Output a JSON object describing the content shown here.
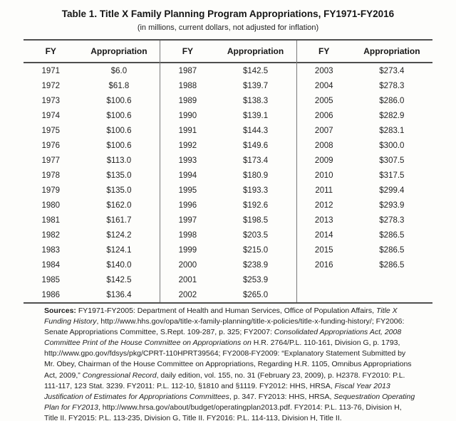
{
  "title": "Table 1. Title X Family Planning Program Appropriations, FY1971-FY2016",
  "subtitle": "(in millions, current dollars, not adjusted for inflation)",
  "table": {
    "column_headers": [
      "FY",
      "Appropriation"
    ],
    "groups": [
      {
        "rows": [
          [
            "1971",
            "$6.0"
          ],
          [
            "1972",
            "$61.8"
          ],
          [
            "1973",
            "$100.6"
          ],
          [
            "1974",
            "$100.6"
          ],
          [
            "1975",
            "$100.6"
          ],
          [
            "1976",
            "$100.6"
          ],
          [
            "1977",
            "$113.0"
          ],
          [
            "1978",
            "$135.0"
          ],
          [
            "1979",
            "$135.0"
          ],
          [
            "1980",
            "$162.0"
          ],
          [
            "1981",
            "$161.7"
          ],
          [
            "1982",
            "$124.2"
          ],
          [
            "1983",
            "$124.1"
          ],
          [
            "1984",
            "$140.0"
          ],
          [
            "1985",
            "$142.5"
          ],
          [
            "1986",
            "$136.4"
          ]
        ]
      },
      {
        "rows": [
          [
            "1987",
            "$142.5"
          ],
          [
            "1988",
            "$139.7"
          ],
          [
            "1989",
            "$138.3"
          ],
          [
            "1990",
            "$139.1"
          ],
          [
            "1991",
            "$144.3"
          ],
          [
            "1992",
            "$149.6"
          ],
          [
            "1993",
            "$173.4"
          ],
          [
            "1994",
            "$180.9"
          ],
          [
            "1995",
            "$193.3"
          ],
          [
            "1996",
            "$192.6"
          ],
          [
            "1997",
            "$198.5"
          ],
          [
            "1998",
            "$203.5"
          ],
          [
            "1999",
            "$215.0"
          ],
          [
            "2000",
            "$238.9"
          ],
          [
            "2001",
            "$253.9"
          ],
          [
            "2002",
            "$265.0"
          ]
        ]
      },
      {
        "rows": [
          [
            "2003",
            "$273.4"
          ],
          [
            "2004",
            "$278.3"
          ],
          [
            "2005",
            "$286.0"
          ],
          [
            "2006",
            "$282.9"
          ],
          [
            "2007",
            "$283.1"
          ],
          [
            "2008",
            "$300.0"
          ],
          [
            "2009",
            "$307.5"
          ],
          [
            "2010",
            "$317.5"
          ],
          [
            "2011",
            "$299.4"
          ],
          [
            "2012",
            "$293.9"
          ],
          [
            "2013",
            "$278.3"
          ],
          [
            "2014",
            "$286.5"
          ],
          [
            "2015",
            "$286.5"
          ],
          [
            "2016",
            "$286.5"
          ]
        ]
      }
    ]
  },
  "sources": {
    "segments": [
      {
        "style": "bold",
        "text": "Sources: "
      },
      {
        "style": "normal",
        "text": "FY1971-FY2005: Department of Health and Human Services, Office of Population Affairs, "
      },
      {
        "style": "italic",
        "text": "Title X Funding History"
      },
      {
        "style": "normal",
        "text": ", http://www.hhs.gov/opa/title-x-family-planning/title-x-policies/title-x-funding-history/; FY2006: Senate Appropriations Committee, S.Rept. 109-287, p. 325; FY2007: "
      },
      {
        "style": "italic",
        "text": "Consolidated Appropriations Act, 2008 Committee Print of the House Committee on Appropriations on"
      },
      {
        "style": "normal",
        "text": " H.R. 2764/P.L. 110-161, Division G, p. 1793, http://www.gpo.gov/fdsys/pkg/CPRT-110HPRT39564; FY2008-FY2009: “Explanatory Statement Submitted by Mr. Obey, Chairman of the House Committee on Appropriations, Regarding H.R. 1105, Omnibus Appropriations Act, 2009,” "
      },
      {
        "style": "italic",
        "text": "Congressional Record"
      },
      {
        "style": "normal",
        "text": ", daily edition, vol. 155, no. 31 (February 23, 2009), p. H2378. FY2010: P.L. 111-117, 123 Stat. 3239. FY2011: P.L. 112-10, §1810 and §1119. FY2012: HHS, HRSA, "
      },
      {
        "style": "italic",
        "text": "Fiscal Year 2013 Justification of Estimates for Appropriations Committees"
      },
      {
        "style": "normal",
        "text": ", p. 347. FY2013: HHS, HRSA, "
      },
      {
        "style": "italic",
        "text": "Sequestration Operating Plan for FY2013"
      },
      {
        "style": "normal",
        "text": ", http://www.hrsa.gov/about/budget/operatingplan2013.pdf. FY2014: P.L. 113-76, Division H, Title II. FY2015: P.L. 113-235, Division G, Title II. FY2016: P.L. 114-113, Division H, Title II."
      }
    ]
  }
}
